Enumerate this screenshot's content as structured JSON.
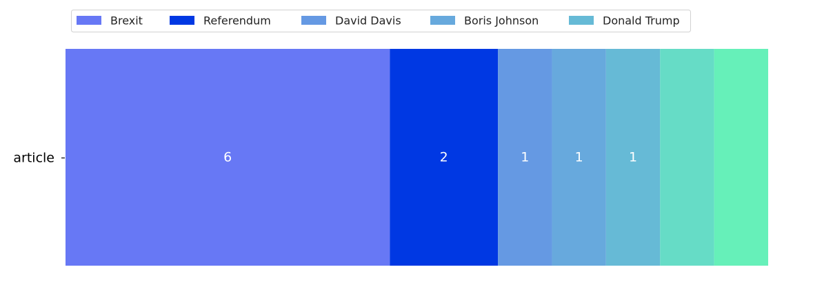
{
  "chart_data": {
    "type": "bar",
    "orientation": "horizontal",
    "stacked": true,
    "categories": [
      "article"
    ],
    "series": [
      {
        "name": "Brexit",
        "values": [
          6
        ],
        "color": "#6778f5",
        "label": "6"
      },
      {
        "name": "Referendum",
        "values": [
          2
        ],
        "color": "#0038e3",
        "label": "2"
      },
      {
        "name": "David Davis",
        "values": [
          1
        ],
        "color": "#6599e3",
        "label": "1"
      },
      {
        "name": "Boris Johnson",
        "values": [
          1
        ],
        "color": "#67a9dd",
        "label": "1"
      },
      {
        "name": "Donald Trump",
        "values": [
          1
        ],
        "color": "#66bad6",
        "label": "1"
      },
      {
        "values": [
          1
        ],
        "color": "#66dcc6",
        "label": ""
      },
      {
        "values": [
          1
        ],
        "color": "#66f0b9",
        "label": ""
      }
    ],
    "xlim": [
      0,
      13
    ],
    "legend_entries": [
      "Brexit",
      "Referendum",
      "David Davis",
      "Boris Johnson",
      "Donald Trump"
    ],
    "legend_position": "top",
    "x_axis_visible": false,
    "grid": false
  }
}
